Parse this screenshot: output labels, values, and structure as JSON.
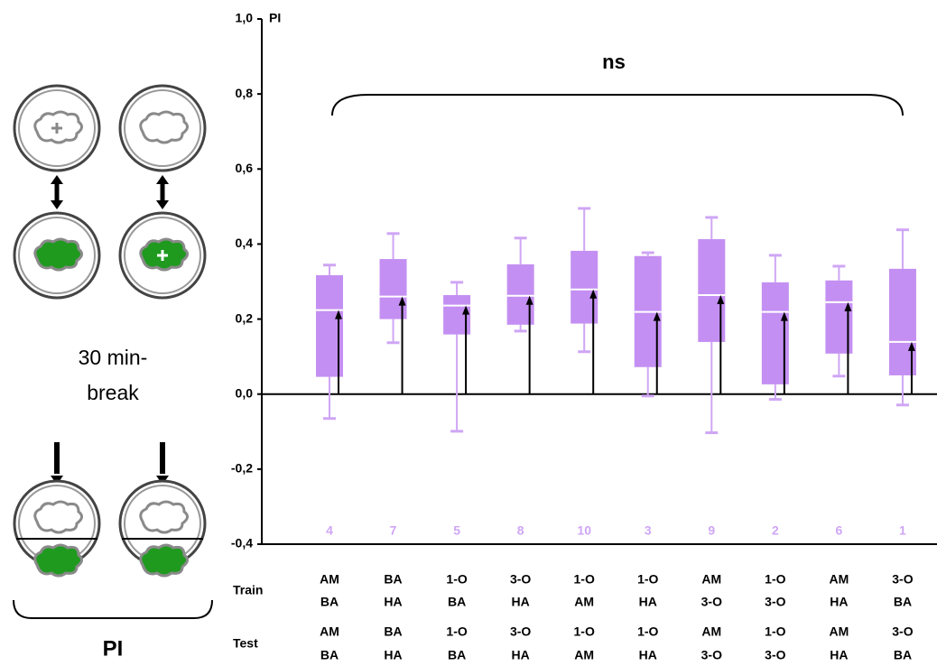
{
  "chart_data": {
    "type": "box",
    "y_label": "PI",
    "annotation": "ns",
    "ylim": [
      -0.4,
      1.0
    ],
    "yticks": [
      {
        "value": -0.4,
        "label": "-0,4"
      },
      {
        "value": -0.2,
        "label": "-0,2"
      },
      {
        "value": 0,
        "label": "0,0"
      },
      {
        "value": 0.2,
        "label": "0,2"
      },
      {
        "value": 0.4,
        "label": "0,4"
      },
      {
        "value": 0.6,
        "label": "0,6"
      },
      {
        "value": 0.8,
        "label": "0,8"
      },
      {
        "value": 1.0,
        "label": "1,0"
      }
    ],
    "color": "#c48ff2",
    "whisker_color": "#cfa6f5",
    "boxes": [
      {
        "whisker_low": -0.065,
        "q1": 0.046,
        "median": 0.224,
        "q3": 0.317,
        "whisker_high": 0.344
      },
      {
        "whisker_low": 0.137,
        "q1": 0.2,
        "median": 0.26,
        "q3": 0.36,
        "whisker_high": 0.428
      },
      {
        "whisker_low": -0.099,
        "q1": 0.159,
        "median": 0.236,
        "q3": 0.264,
        "whisker_high": 0.298
      },
      {
        "whisker_low": 0.168,
        "q1": 0.185,
        "median": 0.262,
        "q3": 0.346,
        "whisker_high": 0.416
      },
      {
        "whisker_low": 0.113,
        "q1": 0.188,
        "median": 0.279,
        "q3": 0.382,
        "whisker_high": 0.495
      },
      {
        "whisker_low": -0.005,
        "q1": 0.072,
        "median": 0.219,
        "q3": 0.368,
        "whisker_high": 0.377
      },
      {
        "whisker_low": -0.103,
        "q1": 0.139,
        "median": 0.264,
        "q3": 0.413,
        "whisker_high": 0.471
      },
      {
        "whisker_low": -0.014,
        "q1": 0.026,
        "median": 0.219,
        "q3": 0.298,
        "whisker_high": 0.37
      },
      {
        "whisker_low": 0.048,
        "q1": 0.108,
        "median": 0.245,
        "q3": 0.303,
        "whisker_high": 0.341
      },
      {
        "whisker_low": -0.029,
        "q1": 0.05,
        "median": 0.139,
        "q3": 0.334,
        "whisker_high": 0.438
      }
    ],
    "ranks": [
      4,
      7,
      5,
      8,
      10,
      3,
      9,
      2,
      6,
      1
    ],
    "train_label": "Train",
    "test_label": "Test",
    "train": [
      [
        "AM",
        "BA"
      ],
      [
        "BA",
        "HA"
      ],
      [
        "1-O",
        "BA"
      ],
      [
        "3-O",
        "HA"
      ],
      [
        "1-O",
        "AM"
      ],
      [
        "1-O",
        "HA"
      ],
      [
        "AM",
        "3-O"
      ],
      [
        "1-O",
        "3-O"
      ],
      [
        "AM",
        "HA"
      ],
      [
        "3-O",
        "BA"
      ]
    ],
    "test": [
      [
        "AM",
        "BA"
      ],
      [
        "BA",
        "HA"
      ],
      [
        "1-O",
        "BA"
      ],
      [
        "3-O",
        "HA"
      ],
      [
        "1-O",
        "AM"
      ],
      [
        "1-O",
        "HA"
      ],
      [
        "AM",
        "3-O"
      ],
      [
        "1-O",
        "3-O"
      ],
      [
        "AM",
        "HA"
      ],
      [
        "3-O",
        "BA"
      ]
    ]
  },
  "diagram": {
    "break_label_lines": [
      "30 min-",
      "break"
    ],
    "result_label": "PI"
  }
}
